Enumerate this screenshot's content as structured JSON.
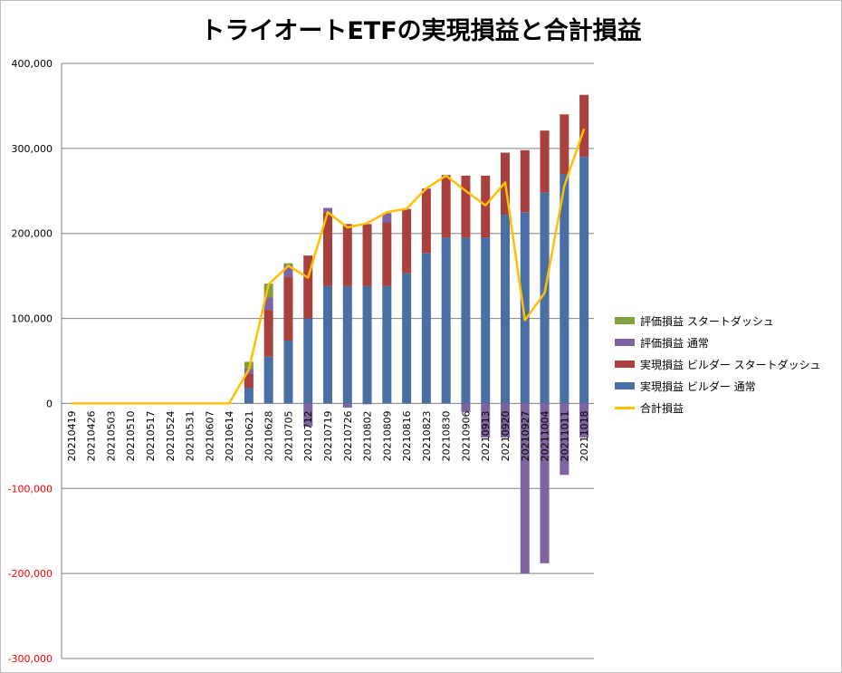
{
  "chart_data": {
    "type": "bar",
    "title": "トライオートETFの実現損益と合計損益",
    "categories": [
      "20210419",
      "20210426",
      "20210503",
      "20210510",
      "20210517",
      "20210524",
      "20210531",
      "20210607",
      "20210614",
      "20210621",
      "20210628",
      "20210705",
      "20210712",
      "20210719",
      "20210726",
      "20210802",
      "20210809",
      "20210816",
      "20210823",
      "20210830",
      "20210906",
      "20210913",
      "20210920",
      "20210927",
      "20211004",
      "20211011",
      "20211018"
    ],
    "ylim": [
      -300000,
      400000
    ],
    "yticks": [
      "400,000",
      "300,000",
      "200,000",
      "100,000",
      "0",
      "-100,000",
      "-200,000",
      "-300,000"
    ],
    "ytick_values": [
      400000,
      300000,
      200000,
      100000,
      0,
      -100000,
      -200000,
      -300000
    ],
    "negative_tick_color": "#ff0000",
    "grid": true,
    "legend_position": "right",
    "stacked": true,
    "series": [
      {
        "name": "実現損益 ビルダー 通常",
        "kind": "bar",
        "color": "#4a6fa5",
        "values": [
          0,
          0,
          0,
          0,
          0,
          0,
          0,
          0,
          0,
          18000,
          55000,
          74000,
          100000,
          138000,
          138000,
          138000,
          138000,
          153000,
          177000,
          195000,
          195000,
          195000,
          222000,
          225000,
          248000,
          270000,
          290000
        ]
      },
      {
        "name": "実現損益 ビルダー スタートダッシュ",
        "kind": "bar",
        "color": "#a8403d",
        "values": [
          0,
          0,
          0,
          0,
          0,
          0,
          0,
          0,
          0,
          17000,
          55000,
          75000,
          74000,
          87000,
          73000,
          73000,
          75000,
          75000,
          75000,
          73000,
          73000,
          73000,
          73000,
          73000,
          73000,
          70000,
          73000
        ]
      },
      {
        "name": "評価損益 通常",
        "kind": "bar",
        "color": "#8064a2",
        "values": [
          0,
          0,
          0,
          0,
          0,
          0,
          0,
          0,
          0,
          6000,
          15000,
          14000,
          -27000,
          5000,
          -5000,
          -1000,
          11000,
          1000,
          1000,
          1000,
          -10000,
          -40000,
          -40000,
          -200000,
          -188000,
          -84000,
          -40000
        ]
      },
      {
        "name": "評価損益 スタートダッシュ",
        "kind": "bar",
        "color": "#80a040",
        "values": [
          0,
          0,
          0,
          0,
          0,
          0,
          0,
          0,
          0,
          8000,
          16000,
          2000,
          0,
          0,
          0,
          0,
          0,
          0,
          0,
          0,
          0,
          0,
          0,
          0,
          0,
          0,
          0
        ]
      },
      {
        "name": "合計損益",
        "kind": "line",
        "color": "#ffc000",
        "values": [
          0,
          0,
          0,
          0,
          0,
          0,
          0,
          0,
          0,
          40000,
          140000,
          162000,
          148000,
          225000,
          207000,
          212000,
          225000,
          229000,
          253000,
          268000,
          250000,
          233000,
          260000,
          98000,
          130000,
          256000,
          323000
        ]
      }
    ]
  }
}
